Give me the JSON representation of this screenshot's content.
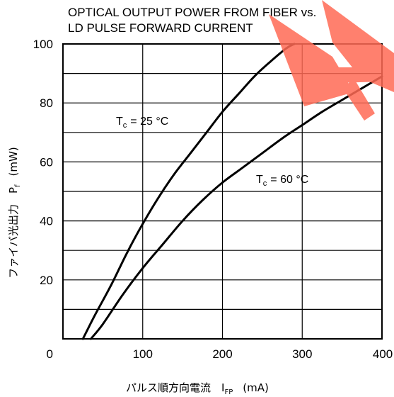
{
  "chart_data": {
    "type": "line",
    "title_line1": "OPTICAL OUTPUT POWER FROM FIBER vs.",
    "title_line2": "LD PULSE FORWARD CURRENT",
    "xlabel": "パルス順方向電流　I",
    "xlabel_sub": "FP",
    "xlabel_unit": "(mA)",
    "ylabel": "ファイバ光出力　P",
    "ylabel_sub": "f",
    "ylabel_unit": "(mW)",
    "xlim": [
      0,
      400
    ],
    "ylim": [
      0,
      100
    ],
    "x_major_ticks": [
      0,
      100,
      200,
      300,
      400
    ],
    "x_tick_labels": [
      "0",
      "100",
      "200",
      "300",
      "400"
    ],
    "y_major_ticks": [
      0,
      20,
      40,
      60,
      80,
      100
    ],
    "y_tick_labels": [
      "20",
      "40",
      "60",
      "80",
      "100"
    ],
    "x_gridlines": [
      100,
      200,
      300
    ],
    "y_gridlines": [
      10,
      20,
      30,
      40,
      50,
      60,
      70,
      80,
      90
    ],
    "grid": true,
    "series": [
      {
        "label_prefix": "T",
        "label_sub": "c",
        "label_suffix": "= 25 °C",
        "color": "#000000",
        "x": [
          25,
          40,
          60,
          80,
          100,
          120,
          140,
          160,
          180,
          200,
          220,
          240,
          260,
          280,
          290
        ],
        "y": [
          0,
          8,
          18,
          29,
          39,
          48,
          56,
          63,
          70,
          77,
          83,
          89,
          94,
          98.5,
          100
        ]
      },
      {
        "label_prefix": "T",
        "label_sub": "c",
        "label_suffix": "= 60 °C",
        "color": "#000000",
        "x": [
          35,
          50,
          75,
          100,
          125,
          150,
          175,
          200,
          225,
          250,
          275,
          300,
          325,
          350,
          375,
          400
        ],
        "y": [
          0,
          5,
          15,
          24,
          32,
          40,
          47,
          53,
          58,
          63,
          68,
          72.5,
          77,
          81,
          85,
          89
        ]
      }
    ],
    "watermark_color": "#ff6a55"
  }
}
